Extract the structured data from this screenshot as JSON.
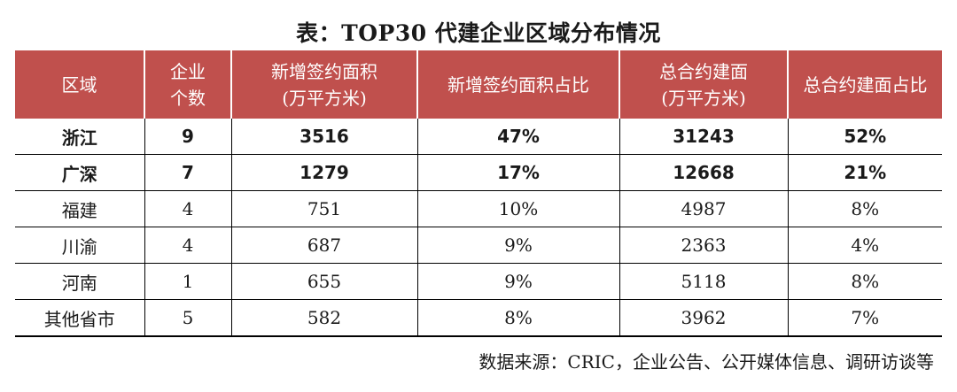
{
  "title": "表：TOP30 代建企业区域分布情况",
  "table": {
    "headers": [
      [
        "区域"
      ],
      [
        "企业",
        "个数"
      ],
      [
        "新增签约面积",
        "(万平方米)"
      ],
      [
        "新增签约面积占比"
      ],
      [
        "总合约建面",
        "(万平方米)"
      ],
      [
        "总合约建面占比"
      ]
    ],
    "rows": [
      [
        "浙江",
        "9",
        "3516",
        "47%",
        "31243",
        "52%"
      ],
      [
        "广深",
        "7",
        "1279",
        "17%",
        "12668",
        "21%"
      ],
      [
        "福建",
        "4",
        "751",
        "10%",
        "4987",
        "8%"
      ],
      [
        "川渝",
        "4",
        "687",
        "9%",
        "2363",
        "4%"
      ],
      [
        "河南",
        "1",
        "655",
        "9%",
        "5118",
        "8%"
      ],
      [
        "其他省市",
        "5",
        "582",
        "8%",
        "3962",
        "7%"
      ]
    ]
  },
  "source": "数据来源：CRIC，企业公告、公开媒体信息、调研访谈等",
  "colors": {
    "header_bg": "#c0504d",
    "header_text": "#ffffff",
    "rule": "#000000"
  }
}
